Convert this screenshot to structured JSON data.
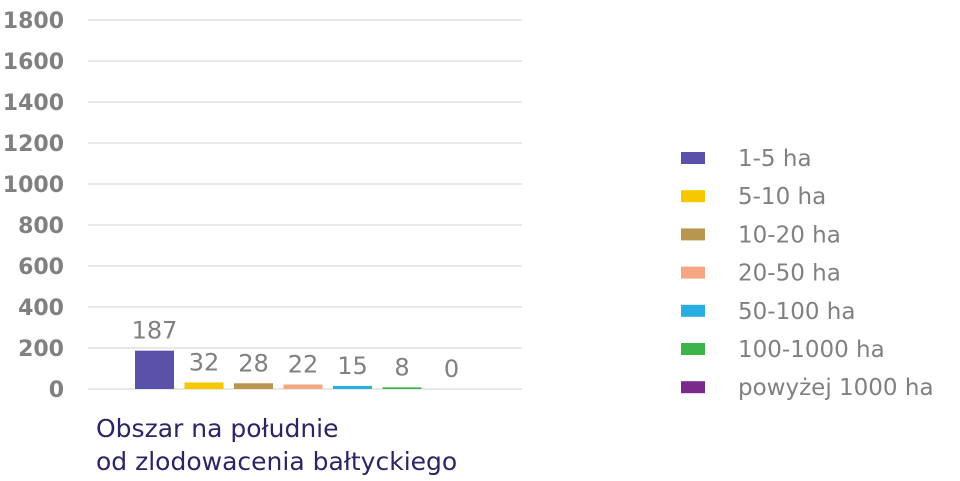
{
  "chart_data": {
    "type": "bar",
    "categories": [
      "Obszar na południe od zlodowacenia bałtyckiego"
    ],
    "category_label_lines": [
      "Obszar na południe",
      "od zlodowacenia bałtyckiego"
    ],
    "series": [
      {
        "name": "1-5 ha",
        "values": [
          187
        ],
        "color": "#5a52a8"
      },
      {
        "name": "5-10 ha",
        "values": [
          32
        ],
        "color": "#f5c800"
      },
      {
        "name": "10-20 ha",
        "values": [
          28
        ],
        "color": "#b8964f"
      },
      {
        "name": "20-50 ha",
        "values": [
          22
        ],
        "color": "#f5a682"
      },
      {
        "name": "50-100 ha",
        "values": [
          15
        ],
        "color": "#29aee3"
      },
      {
        "name": "100-1000 ha",
        "values": [
          8
        ],
        "color": "#3cb44b"
      },
      {
        "name": "powyżej 1000 ha",
        "values": [
          0
        ],
        "color": "#7b2a8a"
      }
    ],
    "yticks": [
      "0",
      "200",
      "400",
      "600",
      "800",
      "1000",
      "1200",
      "1400",
      "1600",
      "1800"
    ],
    "ylim": [
      0,
      1800
    ],
    "grid": true,
    "legend": "right",
    "title": "",
    "xlabel": "",
    "ylabel": ""
  }
}
